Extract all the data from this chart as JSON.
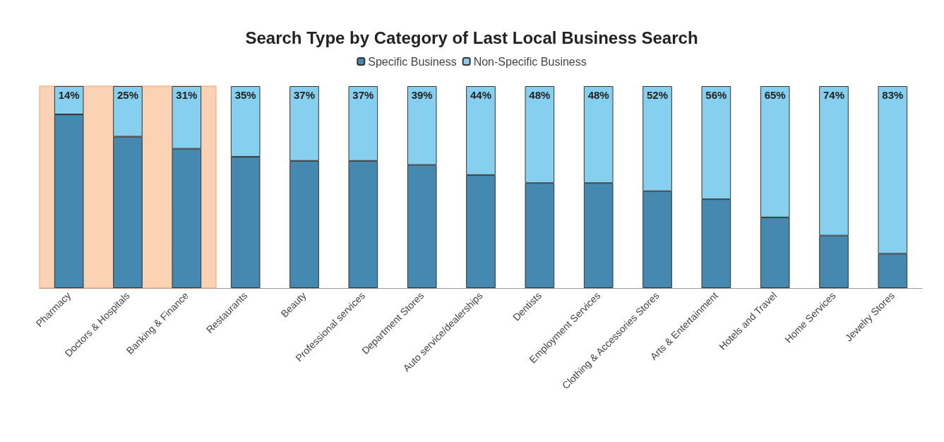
{
  "chart_data": {
    "type": "bar",
    "title": "Search Type by Category of Last Local Business Search",
    "stacked": true,
    "legend": "top",
    "categories": [
      "Pharmacy",
      "Doctors & Hospitals",
      "Banking & Finance",
      "Restaurants",
      "Beauty",
      "Professional services",
      "Department Stores",
      "Auto service/dealerships",
      "Dentists",
      "Employment Services",
      "Clothing & Accessories Stores",
      "Arts & Entertainment",
      "Hotels and Travel",
      "Home Services",
      "Jewelry Stores"
    ],
    "series": [
      {
        "name": "Specific Business",
        "color": "#4689b0",
        "values": [
          86,
          75,
          69,
          65,
          63,
          63,
          61,
          56,
          52,
          52,
          48,
          44,
          35,
          26,
          17
        ]
      },
      {
        "name": "Non-Specific Business",
        "color": "#87cfee",
        "values": [
          14,
          25,
          31,
          35,
          37,
          37,
          39,
          44,
          48,
          48,
          52,
          56,
          65,
          74,
          83
        ],
        "value_labels": [
          "14%",
          "25%",
          "31%",
          "35%",
          "37%",
          "37%",
          "39%",
          "44%",
          "48%",
          "48%",
          "52%",
          "56%",
          "65%",
          "74%",
          "83%"
        ]
      }
    ],
    "bands": [
      {
        "axis": "x",
        "from": "Pharmacy",
        "to": "Banking & Finance",
        "color": "#fbd3b4"
      }
    ]
  }
}
